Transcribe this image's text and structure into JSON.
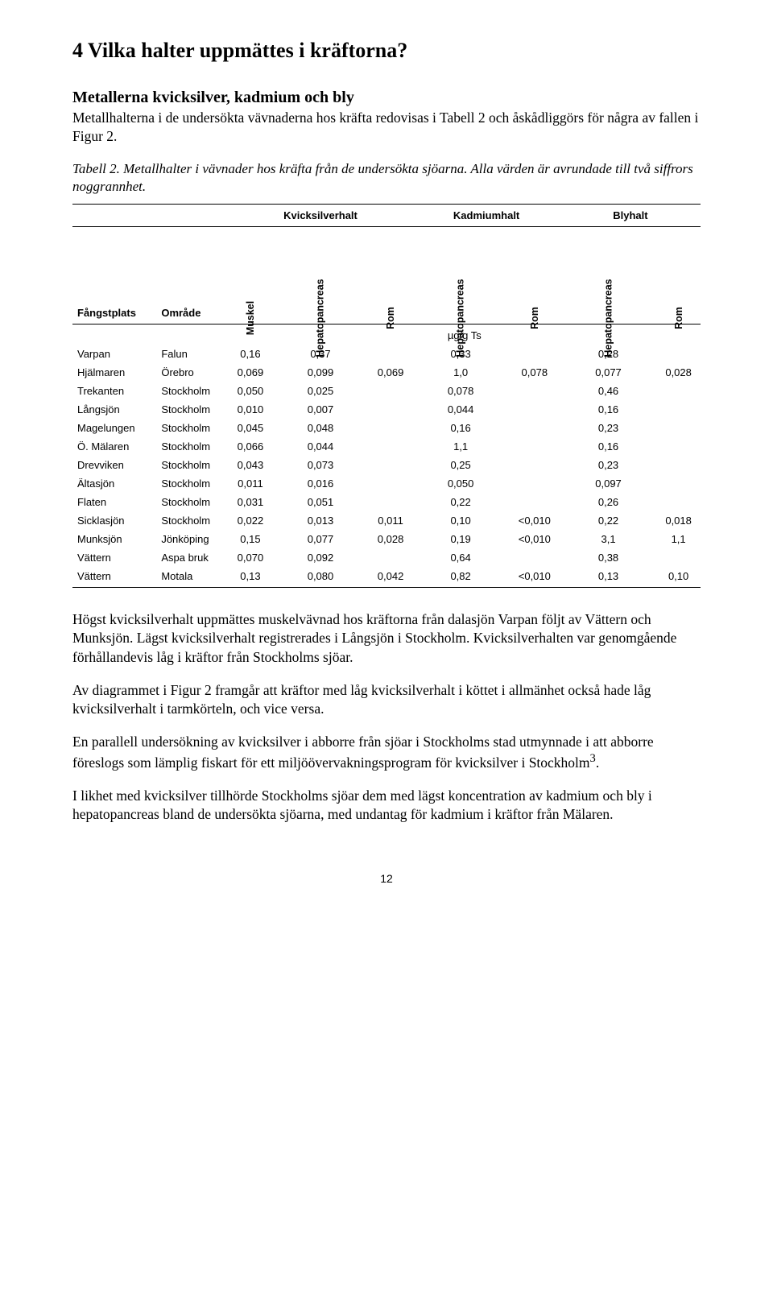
{
  "section_title": "4  Vilka halter uppmättes i kräftorna?",
  "subheading": "Metallerna kvicksilver, kadmium och bly",
  "intro": "Metallhalterna i de undersökta vävnaderna hos kräfta redovisas i Tabell 2 och åskådliggörs för några av fallen i Figur 2.",
  "caption": "Tabell 2. Metallhalter i vävnader hos kräfta från de undersökta sjöarna. Alla värden är avrundade till två siffrors noggrannhet.",
  "table": {
    "group_headers": [
      "Kvicksilverhalt",
      "Kadmiumhalt",
      "Blyhalt"
    ],
    "left_headers": [
      "Fångstplats",
      "Område"
    ],
    "rot_headers_hg": [
      "Muskel",
      "Hepatopancreas",
      "Rom"
    ],
    "rot_headers_cd": [
      "Hepatopancreas",
      "Rom"
    ],
    "rot_headers_pb": [
      "Hepatopancreas",
      "Rom"
    ],
    "unit_label": "µg/g Ts",
    "rows": [
      {
        "site": "Varpan",
        "area": "Falun",
        "hg_m": "0,16",
        "hg_h": "0,37",
        "hg_r": "",
        "cd_h": "0,33",
        "cd_r": "",
        "pb_h": "0,28",
        "pb_r": ""
      },
      {
        "site": "Hjälmaren",
        "area": "Örebro",
        "hg_m": "0,069",
        "hg_h": "0,099",
        "hg_r": "0,069",
        "cd_h": "1,0",
        "cd_r": "0,078",
        "pb_h": "0,077",
        "pb_r": "0,028"
      },
      {
        "site": "Trekanten",
        "area": "Stockholm",
        "hg_m": "0,050",
        "hg_h": "0,025",
        "hg_r": "",
        "cd_h": "0,078",
        "cd_r": "",
        "pb_h": "0,46",
        "pb_r": ""
      },
      {
        "site": "Långsjön",
        "area": "Stockholm",
        "hg_m": "0,010",
        "hg_h": "0,007",
        "hg_r": "",
        "cd_h": "0,044",
        "cd_r": "",
        "pb_h": "0,16",
        "pb_r": ""
      },
      {
        "site": "Magelungen",
        "area": "Stockholm",
        "hg_m": "0,045",
        "hg_h": "0,048",
        "hg_r": "",
        "cd_h": "0,16",
        "cd_r": "",
        "pb_h": "0,23",
        "pb_r": ""
      },
      {
        "site": "Ö. Mälaren",
        "area": "Stockholm",
        "hg_m": "0,066",
        "hg_h": "0,044",
        "hg_r": "",
        "cd_h": "1,1",
        "cd_r": "",
        "pb_h": "0,16",
        "pb_r": ""
      },
      {
        "site": "Drevviken",
        "area": "Stockholm",
        "hg_m": "0,043",
        "hg_h": "0,073",
        "hg_r": "",
        "cd_h": "0,25",
        "cd_r": "",
        "pb_h": "0,23",
        "pb_r": ""
      },
      {
        "site": "Ältasjön",
        "area": "Stockholm",
        "hg_m": "0,011",
        "hg_h": "0,016",
        "hg_r": "",
        "cd_h": "0,050",
        "cd_r": "",
        "pb_h": "0,097",
        "pb_r": ""
      },
      {
        "site": "Flaten",
        "area": "Stockholm",
        "hg_m": "0,031",
        "hg_h": "0,051",
        "hg_r": "",
        "cd_h": "0,22",
        "cd_r": "",
        "pb_h": "0,26",
        "pb_r": ""
      },
      {
        "site": "Sicklasjön",
        "area": "Stockholm",
        "hg_m": "0,022",
        "hg_h": "0,013",
        "hg_r": "0,011",
        "cd_h": "0,10",
        "cd_r": "<0,010",
        "pb_h": "0,22",
        "pb_r": "0,018"
      },
      {
        "site": "Munksjön",
        "area": "Jönköping",
        "hg_m": "0,15",
        "hg_h": "0,077",
        "hg_r": "0,028",
        "cd_h": "0,19",
        "cd_r": "<0,010",
        "pb_h": "3,1",
        "pb_r": "1,1"
      },
      {
        "site": "Vättern",
        "area": "Aspa bruk",
        "hg_m": "0,070",
        "hg_h": "0,092",
        "hg_r": "",
        "cd_h": "0,64",
        "cd_r": "",
        "pb_h": "0,38",
        "pb_r": ""
      },
      {
        "site": "Vättern",
        "area": "Motala",
        "hg_m": "0,13",
        "hg_h": "0,080",
        "hg_r": "0,042",
        "cd_h": "0,82",
        "cd_r": "<0,010",
        "pb_h": "0,13",
        "pb_r": "0,10"
      }
    ]
  },
  "para2": "Högst kvicksilverhalt uppmättes muskelvävnad hos kräftorna från dalasjön Varpan följt av Vättern och Munksjön. Lägst kvicksilverhalt registrerades i Långsjön i Stockholm. Kvicksilverhalten var genomgående förhållandevis låg i kräftor från Stockholms sjöar.",
  "para3": "Av diagrammet i Figur 2 framgår att kräftor med låg kvicksilverhalt i köttet i allmänhet också hade låg kvicksilverhalt i tarmkörteln, och vice versa.",
  "para4_a": "En parallell undersökning av kvicksilver i abborre från sjöar i Stockholms stad utmynnade i att abborre föreslogs som lämplig fiskart för ett miljöövervakningsprogram för kvicksilver i Stockholm",
  "para4_sup": "3",
  "para4_b": ".",
  "para5": "I likhet med kvicksilver tillhörde Stockholms sjöar dem med lägst koncentration av kadmium och bly i hepatopancreas bland de undersökta sjöarna, med undantag för kadmium i kräftor från Mälaren.",
  "page_number": "12"
}
